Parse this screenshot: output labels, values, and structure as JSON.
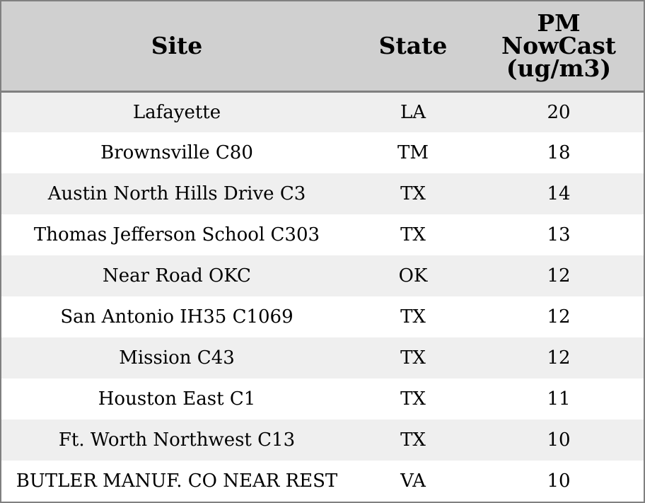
{
  "table": {
    "headers": {
      "site": "Site",
      "state": "State",
      "pm": "PM\nNowCast\n(ug/m3)"
    },
    "rows": [
      {
        "site": "Lafayette",
        "state": "LA",
        "pm": "20"
      },
      {
        "site": "Brownsville C80",
        "state": "TM",
        "pm": "18"
      },
      {
        "site": "Austin North Hills Drive C3",
        "state": "TX",
        "pm": "14"
      },
      {
        "site": "Thomas Jefferson School C303",
        "state": "TX",
        "pm": "13"
      },
      {
        "site": "Near Road OKC",
        "state": "OK",
        "pm": "12"
      },
      {
        "site": "San Antonio IH35 C1069",
        "state": "TX",
        "pm": "12"
      },
      {
        "site": "Mission C43",
        "state": "TX",
        "pm": "12"
      },
      {
        "site": "Houston East C1",
        "state": "TX",
        "pm": "11"
      },
      {
        "site": "Ft. Worth Northwest C13",
        "state": "TX",
        "pm": "10"
      },
      {
        "site": "BUTLER MANUF. CO NEAR REST",
        "state": "VA",
        "pm": "10"
      }
    ]
  },
  "colors": {
    "header_bg": "#d0d0d0",
    "row_alt_bg": "#efefef",
    "row_bg": "#ffffff",
    "border": "#808080"
  }
}
